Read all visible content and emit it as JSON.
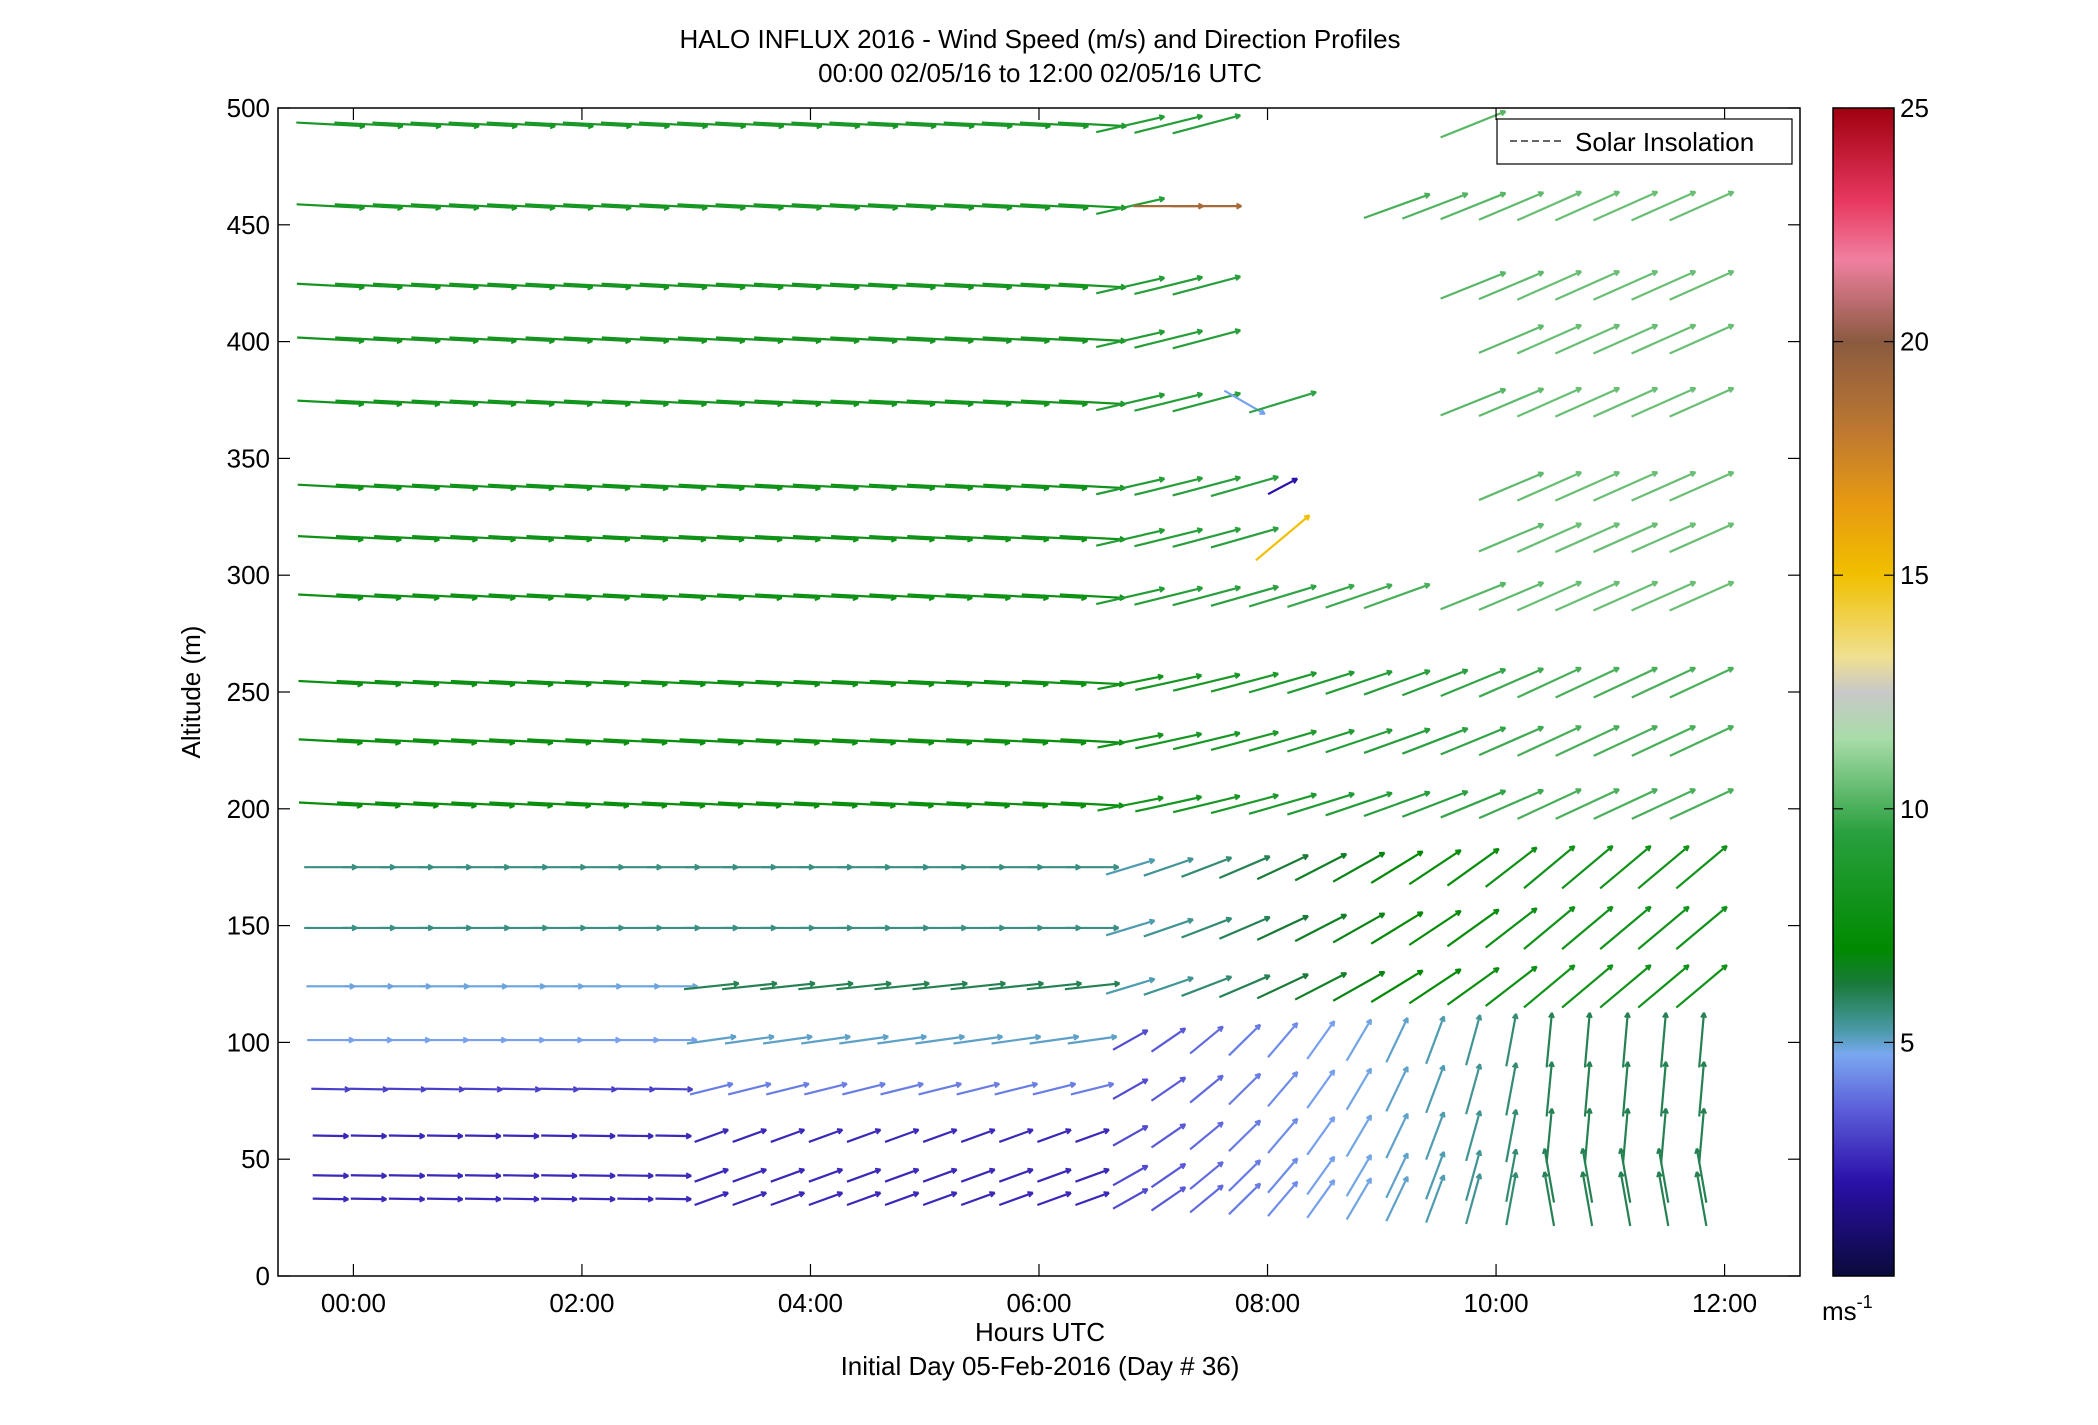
{
  "chart_data": {
    "type": "quiver",
    "title_line1": "HALO INFLUX 2016 - Wind Speed (m/s) and Direction Profiles",
    "title_line2": "00:00 02/05/16 to 12:00 02/05/16  UTC",
    "xlabel": "Hours UTC",
    "xlabel2": "Initial Day 05-Feb-2016 (Day # 36)",
    "ylabel": "Altitude (m)",
    "xlim": [
      -0.66,
      12.66
    ],
    "ylim": [
      0,
      500
    ],
    "xticks": [
      0,
      2,
      4,
      6,
      8,
      10,
      12
    ],
    "xtick_labels": [
      "00:00",
      "02:00",
      "04:00",
      "06:00",
      "08:00",
      "10:00",
      "12:00"
    ],
    "yticks": [
      0,
      50,
      100,
      150,
      200,
      250,
      300,
      350,
      400,
      450,
      500
    ],
    "ytick_labels": [
      "0",
      "50",
      "100",
      "150",
      "200",
      "250",
      "300",
      "350",
      "400",
      "450",
      "500"
    ],
    "legend": {
      "entries": [
        "Solar Insolation"
      ],
      "placement": "top-right"
    },
    "colorbar": {
      "min": 0,
      "max": 25,
      "ticks": [
        5,
        10,
        15,
        20,
        25
      ],
      "tick_labels": [
        "5",
        "10",
        "15",
        "20",
        "25"
      ],
      "unit": "ms",
      "unit_exponent": "-1"
    },
    "time_steps_hours": 0.3333,
    "altitude_levels_m": [
      33,
      43,
      60,
      80,
      101,
      124,
      149,
      175,
      202,
      229,
      254,
      291,
      316,
      338,
      374,
      401,
      424,
      458,
      493
    ],
    "wind_vectors_note": "Each vector drawn at (time, altitude) pointing with the wind; length and colour scale with speed (m/s)."
  }
}
